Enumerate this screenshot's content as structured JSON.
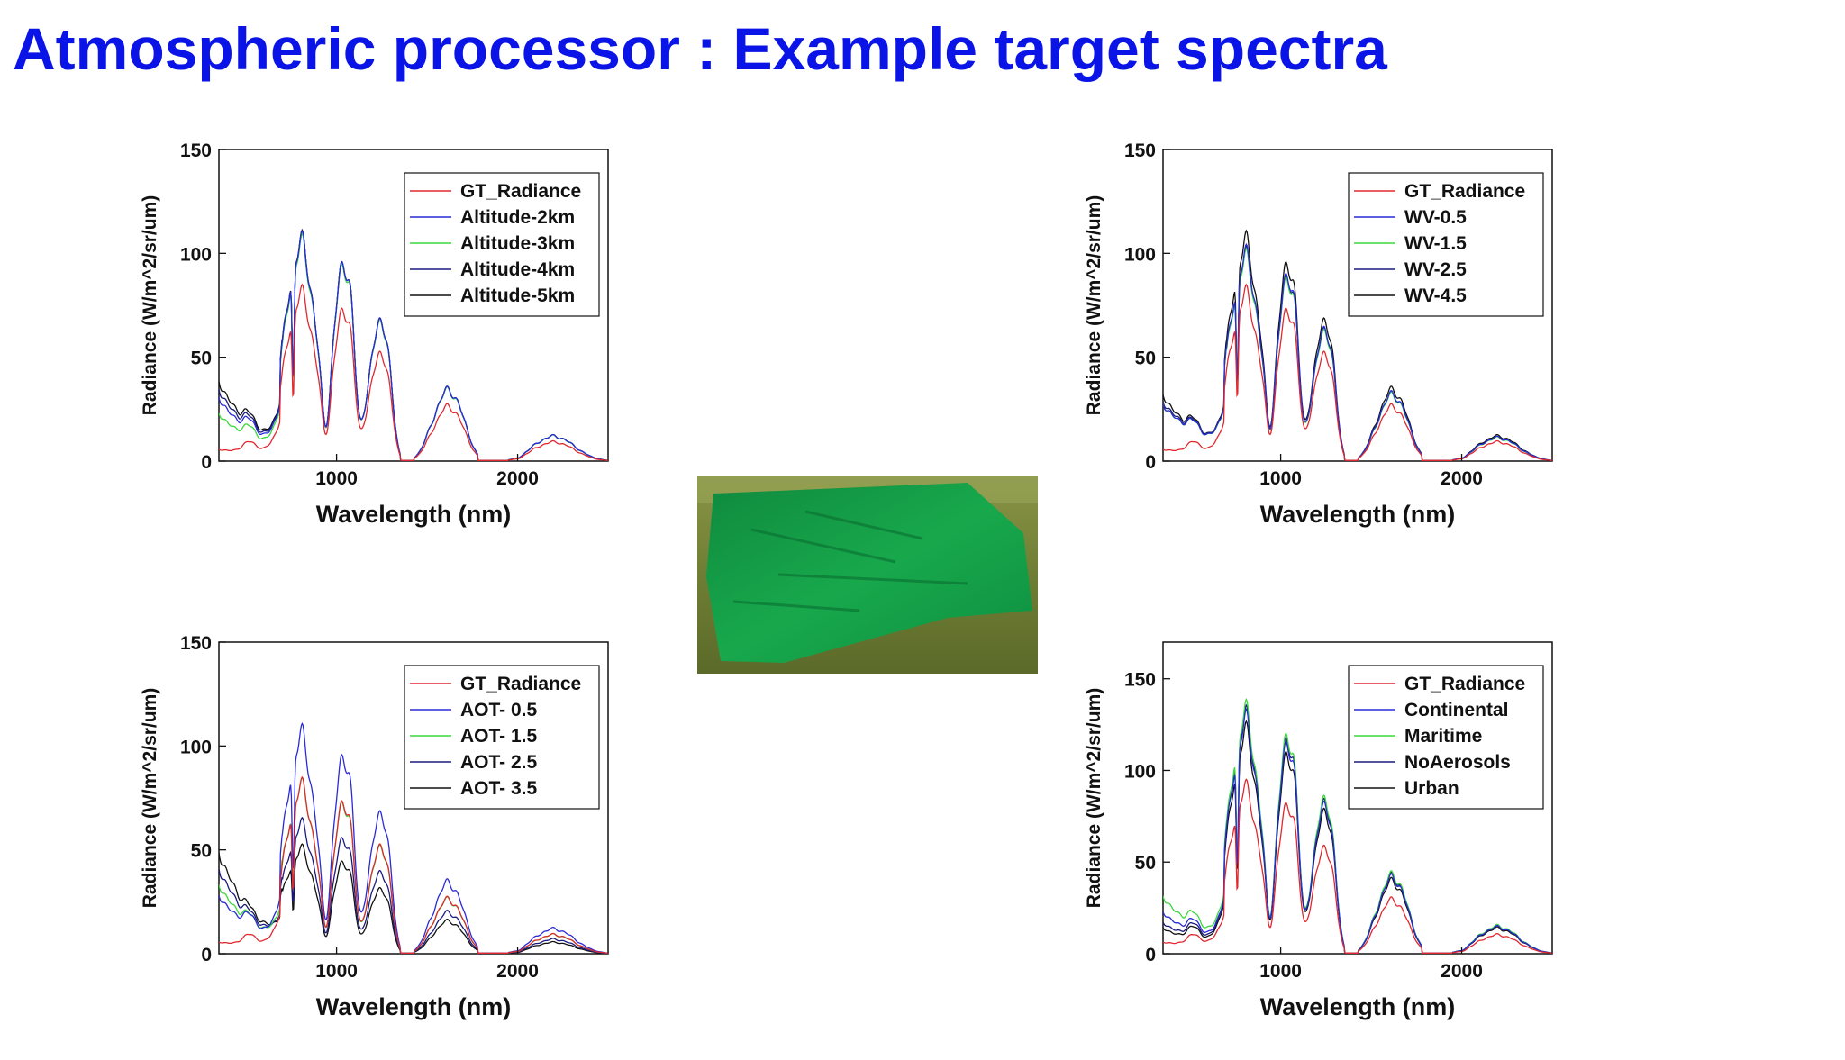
{
  "slide": {
    "title": "Atmospheric processor : Example target spectra"
  },
  "colors": {
    "title": "#0a14e6",
    "red": "#e0282e",
    "blue": "#2a2ad8",
    "green": "#3ad83a",
    "navy": "#1a1a80",
    "black": "#111111",
    "tarp": "#14a046",
    "grass": "#7c8a3c"
  },
  "image": {
    "subject": "green tarpaulin calibration target laid on grass"
  },
  "chart_data": [
    {
      "id": "altitude",
      "type": "line",
      "xlabel": "Wavelength (nm)",
      "ylabel": "Radiance (W/m^2/sr/um)",
      "xlim": [
        350,
        2500
      ],
      "ylim": [
        0,
        150
      ],
      "xticks": [
        1000,
        2000
      ],
      "yticks": [
        0,
        50,
        100,
        150
      ],
      "legend_position": "top-right",
      "series": [
        {
          "name": "GT_Radiance",
          "color": "#e0282e",
          "gain": 0.78,
          "haze": 0.0,
          "pattern": "gt"
        },
        {
          "name": "Altitude-2km",
          "color": "#2a2ad8",
          "gain": 1.0,
          "haze": 24,
          "pattern": "toa"
        },
        {
          "name": "Altitude-3km",
          "color": "#3ad83a",
          "gain": 0.99,
          "haze": 18,
          "pattern": "toa"
        },
        {
          "name": "Altitude-4km",
          "color": "#1a1a80",
          "gain": 1.0,
          "haze": 27,
          "pattern": "toa"
        },
        {
          "name": "Altitude-5km",
          "color": "#111111",
          "gain": 1.0,
          "haze": 30,
          "pattern": "toa"
        }
      ]
    },
    {
      "id": "water-vapour",
      "type": "line",
      "xlabel": "Wavelength (nm)",
      "ylabel": "Radiance (W/m^2/sr/um)",
      "xlim": [
        350,
        2500
      ],
      "ylim": [
        0,
        150
      ],
      "xticks": [
        1000,
        2000
      ],
      "yticks": [
        0,
        50,
        100,
        150
      ],
      "legend_position": "top-right",
      "series": [
        {
          "name": "GT_Radiance",
          "color": "#e0282e",
          "gain": 0.78,
          "haze": 0.0,
          "pattern": "gt"
        },
        {
          "name": "WV-0.5",
          "color": "#2a2ad8",
          "gain": 1.0,
          "haze": 22,
          "pattern": "wv"
        },
        {
          "name": "WV-1.5",
          "color": "#3ad83a",
          "gain": 0.98,
          "haze": 22,
          "pattern": "wv"
        },
        {
          "name": "WV-2.5",
          "color": "#1a1a80",
          "gain": 0.99,
          "haze": 23,
          "pattern": "wv"
        },
        {
          "name": "WV-4.5",
          "color": "#111111",
          "gain": 1.0,
          "haze": 25,
          "pattern": "toa"
        }
      ]
    },
    {
      "id": "aot",
      "type": "line",
      "xlabel": "Wavelength (nm)",
      "ylabel": "Radiance (W/m^2/sr/um)",
      "xlim": [
        350,
        2500
      ],
      "ylim": [
        0,
        150
      ],
      "xticks": [
        1000,
        2000
      ],
      "yticks": [
        0,
        50,
        100,
        150
      ],
      "legend_position": "top-right",
      "series": [
        {
          "name": "GT_Radiance",
          "color": "#e0282e",
          "gain": 0.78,
          "haze": 0.0,
          "pattern": "gt"
        },
        {
          "name": "AOT- 0.5",
          "color": "#2a2ad8",
          "gain": 1.0,
          "haze": 22,
          "pattern": "toa"
        },
        {
          "name": "AOT- 1.5",
          "color": "#3ad83a",
          "gain": 0.76,
          "haze": 26,
          "pattern": "toa"
        },
        {
          "name": "AOT- 2.5",
          "color": "#1a1a80",
          "gain": 0.58,
          "haze": 32,
          "pattern": "toa"
        },
        {
          "name": "AOT- 3.5",
          "color": "#111111",
          "gain": 0.46,
          "haze": 38,
          "pattern": "toa"
        }
      ]
    },
    {
      "id": "aerosol-model",
      "type": "line",
      "xlabel": "Wavelength (nm)",
      "ylabel": "Radiance (W/m^2/sr/um)",
      "xlim": [
        350,
        2500
      ],
      "ylim": [
        0,
        170
      ],
      "xticks": [
        1000,
        2000
      ],
      "yticks": [
        0,
        50,
        100,
        150
      ],
      "legend_position": "top-right",
      "series": [
        {
          "name": "GT_Radiance",
          "color": "#e0282e",
          "gain": 0.78,
          "haze": 0.0,
          "pattern": "gt"
        },
        {
          "name": "Continental",
          "color": "#2a2ad8",
          "gain": 1.08,
          "haze": 16,
          "pattern": "toa"
        },
        {
          "name": "Maritime",
          "color": "#3ad83a",
          "gain": 1.12,
          "haze": 22,
          "pattern": "toa"
        },
        {
          "name": "NoAerosols",
          "color": "#1a1a80",
          "gain": 1.1,
          "haze": 12,
          "pattern": "toa"
        },
        {
          "name": "Urban",
          "color": "#111111",
          "gain": 1.03,
          "haze": 10,
          "pattern": "toa"
        }
      ]
    }
  ]
}
